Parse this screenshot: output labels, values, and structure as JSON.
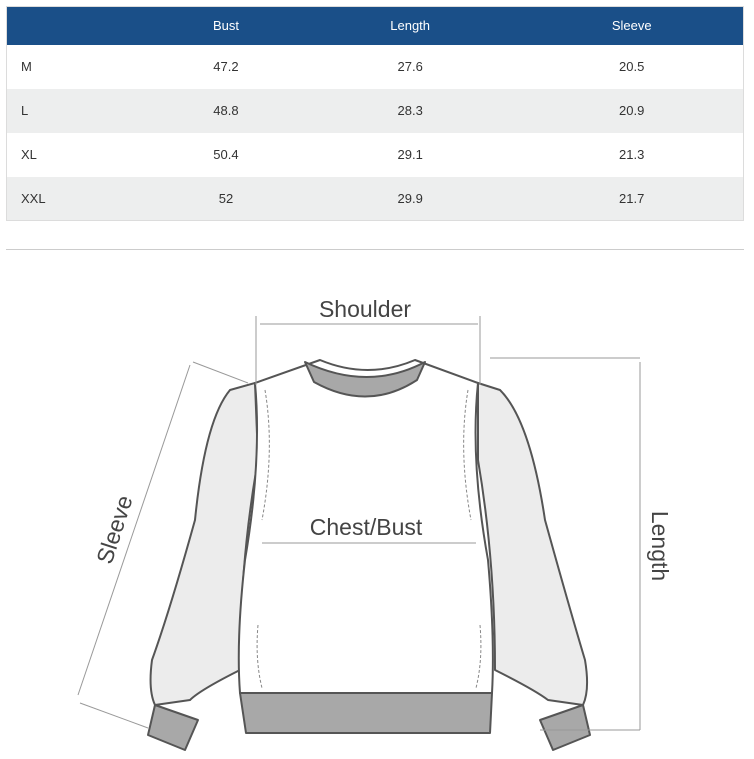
{
  "table": {
    "headers": [
      "",
      "Bust",
      "Length",
      "Sleeve"
    ],
    "rows": [
      [
        "M",
        "47.2",
        "27.6",
        "20.5"
      ],
      [
        "L",
        "48.8",
        "28.3",
        "20.9"
      ],
      [
        "XL",
        "50.4",
        "29.1",
        "21.3"
      ],
      [
        "XXL",
        "52",
        "29.9",
        "21.7"
      ]
    ]
  },
  "diagram": {
    "shoulder": "Shoulder",
    "chest": "Chest/Bust",
    "sleeve": "Sleeve",
    "length": "Length"
  },
  "colors": {
    "header_bg": "#1a4f88",
    "stripe": "#edeeee",
    "trim": "#a8a8a8",
    "sleeve_fill": "#ececec"
  }
}
